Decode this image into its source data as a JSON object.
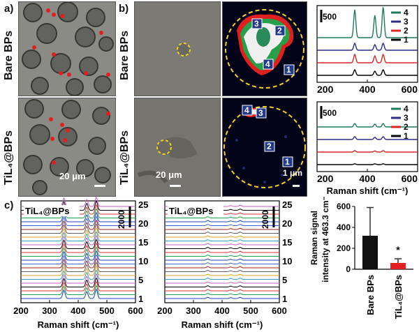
{
  "panels": {
    "a": {
      "label": "a)"
    },
    "b": {
      "label": "b)"
    },
    "c": {
      "label": "c)"
    }
  },
  "rows": {
    "top": "Bare BPs",
    "bottom": "TiL₄@BPs"
  },
  "images": {
    "scale_a": "20 μm",
    "scale_b": "20 μm",
    "scale_map": "1 μm",
    "map_top_markers": [
      "3",
      "2",
      "4",
      "1"
    ],
    "map_bottom_markers": [
      "4",
      "3",
      "2",
      "1"
    ]
  },
  "colors": {
    "series_1": "#000000",
    "series_2": "#d62728",
    "series_3": "#2b2b8f",
    "series_4": "#1f7a5c",
    "bar_bare": "#111111",
    "bar_til": "#e02020"
  },
  "chart_data": [
    {
      "type": "line",
      "panel": "b-top",
      "xlim": [
        200,
        600
      ],
      "xticks": [
        200,
        400,
        600
      ],
      "scale_bar_label": "500",
      "legend": [
        "4",
        "3",
        "2",
        "1"
      ],
      "series": [
        {
          "name": "4",
          "offset": 3,
          "peaks": [
            [
              350,
              1.0
            ],
            [
              430,
              0.8
            ],
            [
              463,
              1.1
            ]
          ]
        },
        {
          "name": "3",
          "offset": 2,
          "peaks": [
            [
              350,
              0.25
            ],
            [
              430,
              0.2
            ],
            [
              463,
              0.25
            ]
          ]
        },
        {
          "name": "2",
          "offset": 1,
          "peaks": [
            [
              350,
              0.3
            ],
            [
              430,
              0.25
            ],
            [
              463,
              0.3
            ]
          ]
        },
        {
          "name": "1",
          "offset": 0,
          "peaks": [
            [
              350,
              0.2
            ],
            [
              430,
              0.15
            ],
            [
              463,
              0.2
            ]
          ]
        }
      ]
    },
    {
      "type": "line",
      "panel": "b-bottom",
      "xlim": [
        200,
        600
      ],
      "xticks": [
        200,
        400,
        600
      ],
      "xlabel": "Raman shift (cm⁻¹)",
      "scale_bar_label": "500",
      "legend": [
        "4",
        "3",
        "2",
        "1"
      ],
      "series": [
        {
          "name": "4",
          "offset": 3,
          "peaks": [
            [
              350,
              0.12
            ],
            [
              430,
              0.1
            ],
            [
              463,
              0.12
            ]
          ]
        },
        {
          "name": "3",
          "offset": 2,
          "peaks": [
            [
              350,
              0.1
            ],
            [
              430,
              0.08
            ],
            [
              463,
              0.1
            ]
          ]
        },
        {
          "name": "2",
          "offset": 1,
          "peaks": [
            [
              350,
              0.05
            ],
            [
              430,
              0.04
            ],
            [
              463,
              0.05
            ]
          ]
        },
        {
          "name": "1",
          "offset": 0,
          "peaks": [
            [
              350,
              0.03
            ],
            [
              430,
              0.03
            ],
            [
              463,
              0.03
            ]
          ]
        }
      ]
    },
    {
      "type": "line",
      "panel": "c-left",
      "title": "TiL₄@BPs",
      "xlim": [
        200,
        600
      ],
      "xticks": [
        200,
        300,
        400,
        500,
        600
      ],
      "xlabel": "Raman shift (cm⁻¹)",
      "scale_bar_label": "2000",
      "right_ticks": [
        "25",
        "20",
        "15",
        "10",
        "5",
        "1"
      ],
      "n_traces": 25,
      "peaks": [
        [
          350,
          0.55
        ],
        [
          430,
          0.45
        ],
        [
          463,
          0.6
        ]
      ]
    },
    {
      "type": "line",
      "panel": "c-middle",
      "title": "TiL₄@BPs",
      "xlim": [
        200,
        600
      ],
      "xticks": [
        200,
        300,
        400,
        500,
        600
      ],
      "xlabel": "Raman shift (cm⁻¹)",
      "scale_bar_label": "2000",
      "right_ticks": [
        "25",
        "20",
        "15",
        "10",
        "5",
        "1"
      ],
      "n_traces": 25,
      "peaks": [
        [
          350,
          0.08
        ],
        [
          430,
          0.06
        ],
        [
          463,
          0.08
        ]
      ]
    },
    {
      "type": "bar",
      "panel": "c-right",
      "categories": [
        "Bare BPs",
        "TiL₄@BPs"
      ],
      "values": [
        320,
        60
      ],
      "errors": [
        270,
        40
      ],
      "ylabel": "Raman signal intensity at 463.3 cm⁻¹",
      "ylim": [
        0,
        600
      ],
      "yticks": [
        0,
        200,
        400,
        600
      ],
      "annotation": "*"
    }
  ]
}
